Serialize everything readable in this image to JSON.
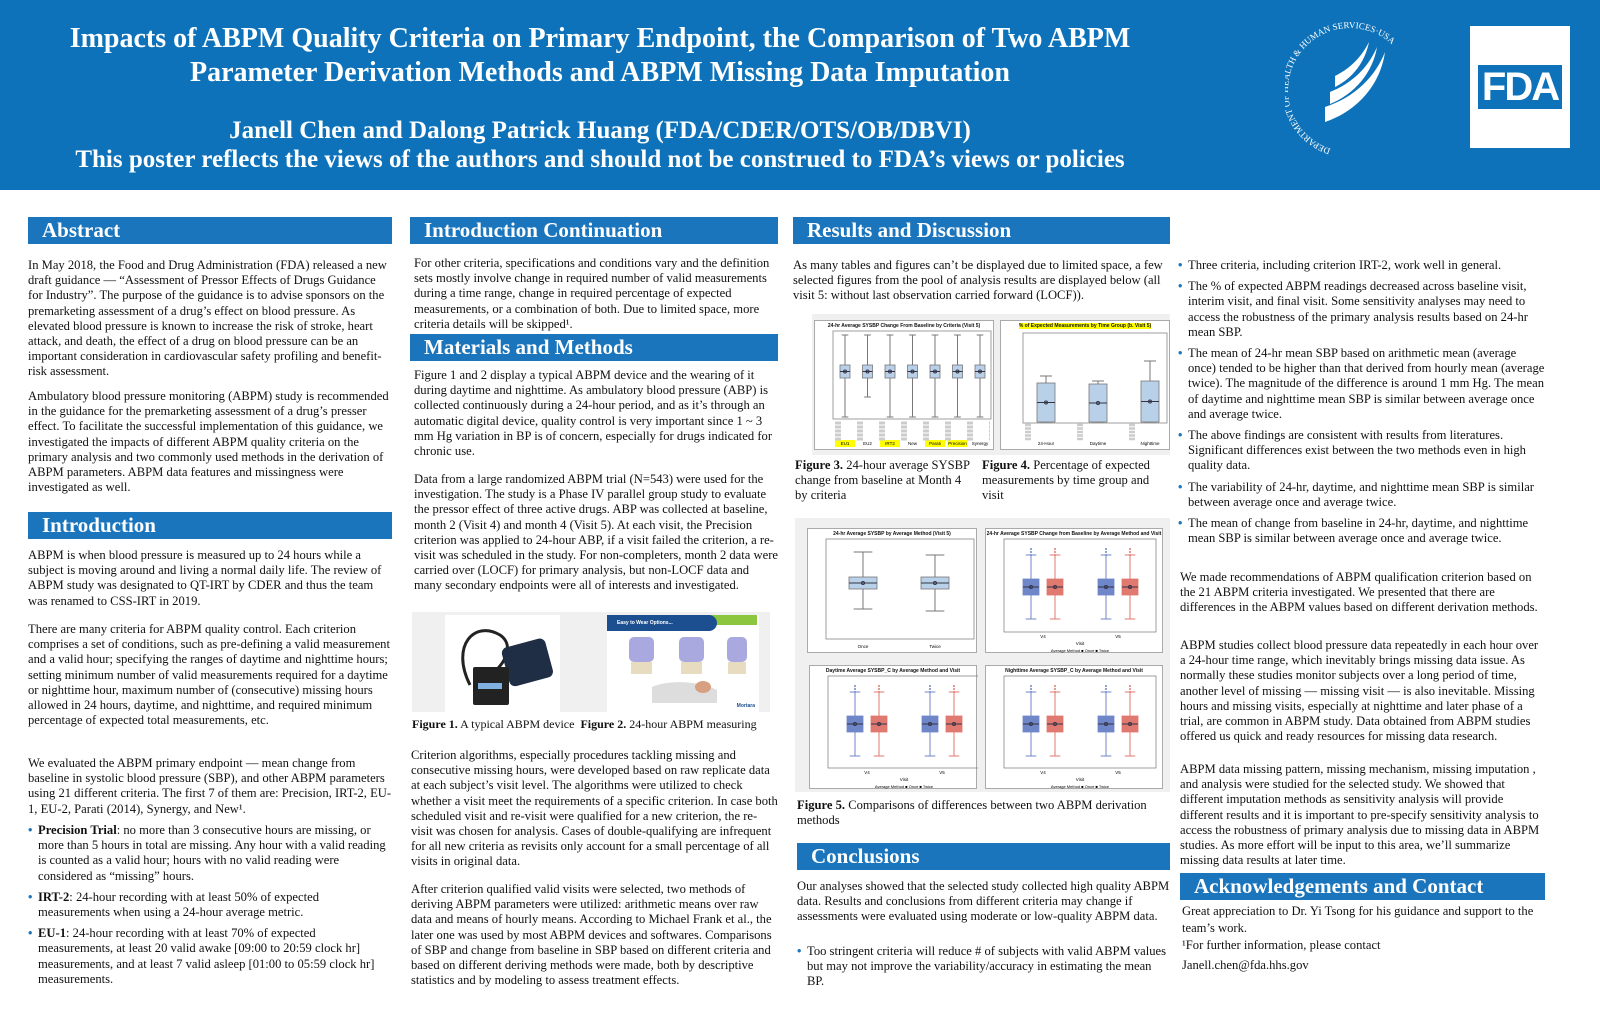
{
  "header": {
    "title_line1": "Impacts of ABPM Quality Criteria on Primary Endpoint, the Comparison of Two ABPM",
    "title_line2": "Parameter Derivation Methods and ABPM Missing Data Imputation",
    "authors": "Janell Chen and Dalong Patrick Huang (FDA/CDER/OTS/OB/DBVI)",
    "disclaimer": "This poster reflects the views of the authors and should not be construed to FDA’s views or policies",
    "hhs_logo_text": "DEPARTMENT OF HEALTH & HUMAN SERVICES·USA",
    "fda_logo": "FDA",
    "bg_color": "#0d72b9"
  },
  "abstract": {
    "heading": "Abstract",
    "p1": "In May 2018, the Food and Drug Administration (FDA) released a new draft guidance — “Assessment of Pressor Effects of Drugs Guidance for Industry”. The purpose of the guidance is to advise sponsors on the premarketing assessment of a drug’s effect on blood pressure. As elevated blood pressure is known to increase the risk of stroke, heart attack, and death, the effect of a drug on blood pressure can be an important consideration in cardiovascular safety profiling and benefit-risk assessment.",
    "p2": "Ambulatory blood pressure monitoring (ABPM) study is recommended in the guidance for the premarketing assessment of a drug’s presser effect. To facilitate the successful implementation of this guidance, we investigated the impacts of different ABPM quality criteria on the primary analysis and two commonly used methods in the derivation of ABPM parameters. ABPM data features and missingness were investigated as well."
  },
  "introduction": {
    "heading": "Introduction",
    "p1": "ABPM is when blood pressure is measured up to 24 hours while a subject is moving around and living a normal daily life. The review of ABPM study was designated to QT-IRT by CDER and thus the team was renamed to CSS-IRT in 2019.",
    "p2": "There are many criteria for ABPM quality control. Each criterion comprises a set of conditions, such as pre-defining a valid measurement and a valid hour; specifying the ranges of daytime and nighttime hours; setting minimum number of valid measurements required for a daytime or nighttime hour, maximum number of (consecutive) missing hours allowed in 24 hours, daytime, and nighttime, and required minimum percentage of expected total measurements, etc.",
    "p3": "We evaluated the ABPM primary endpoint — mean change from baseline in systolic blood pressure (SBP), and other ABPM parameters using 21 different criteria. The first 7 of them are: Precision, IRT-2, EU-1, EU-2, Parati (2014), Synergy, and New¹.",
    "bullets": [
      {
        "term": "Precision Trial",
        "text": ": no more than 3 consecutive hours are missing, or more than 5 hours in total are missing.  Any hour with a valid reading is counted as a valid hour; hours with no valid reading were considered as “missing” hours."
      },
      {
        "term": "IRT-2",
        "text": ": 24-hour recording with at least 50% of expected measurements when using a 24-hour average metric."
      },
      {
        "term": "EU-1",
        "text": ": 24-hour recording with at least 70% of expected measurements, at least 20 valid awake [09:00 to 20:59 clock hr] measurements, and at least 7 valid asleep [01:00 to 05:59 clock hr] measurements."
      }
    ]
  },
  "intro_continuation": {
    "heading": "Introduction Continuation",
    "p1": "For other criteria, specifications and conditions vary and the definition sets mostly involve change in required number of valid measurements during a time range, change in required percentage of expected measurements, or a combination of both. Due to limited space, more criteria details will be skipped¹."
  },
  "methods": {
    "heading": "Materials and Methods",
    "p1": "Figure 1 and 2 display a typical ABPM device and the wearing of it during daytime and nighttime. As ambulatory blood pressure (ABP) is collected continuously during a 24-hour period, and as it’s through an automatic digital device, quality control is very important since 1 ~ 3 mm Hg variation in BP is of concern, especially for drugs indicated for chronic use.",
    "p2": "Data from a large randomized ABPM trial (N=543) were used for the investigation. The study is a Phase IV parallel group study to evaluate the pressor effect of three active drugs. ABP was collected at baseline, month 2 (Visit 4) and month 4 (Visit 5). At each visit, the Precision criterion was applied to 24-hour ABP, if a visit failed the criterion, a re-visit was scheduled in the study. For non-completers, month 2 data were carried over (LOCF) for primary analysis, but non-LOCF data and many secondary endpoints were all of interests and investigated.",
    "fig_banner": "Easy to Wear Options...",
    "fig_brand": "Mortara",
    "fig1_label": "Figure 1.",
    "fig1_text": "A typical ABPM device",
    "fig2_label": "Figure 2.",
    "fig2_text": "24-hour ABPM measuring",
    "p3": "Criterion algorithms, especially procedures tackling missing and consecutive missing hours, were developed based on raw replicate data at each subject’s visit level. The algorithms were utilized to check whether a visit meet the requirements of a specific criterion. In case both scheduled visit and re-visit were qualified for a new criterion, the re-visit was chosen for analysis. Cases of double-qualifying are infrequent for all new criteria as revisits only account for  a small percentage of all visits in original data.",
    "p4": "After criterion qualified valid visits were selected, two  methods of deriving ABPM parameters were utilized: arithmetic means over raw data and means of hourly means. According to Michael Frank et al., the later one was used by most ABPM devices and softwares. Comparisons of SBP and change from baseline in SBP based on different criteria and based on different deriving methods were made, both by descriptive statistics and by modeling to assess treatment effects."
  },
  "results": {
    "heading": "Results and Discussion",
    "p1": "As many tables and figures can’t be displayed due to limited space, a few selected figures from the pool of analysis results are displayed below (all visit 5: without last observation carried forward (LOCF)).",
    "fig3_title": "24-hr Average SYSBP Change From Baseline by Criteria (Visit 5)",
    "fig3_categories": [
      "EU1",
      "EU2",
      "IRT2",
      "New",
      "Parati",
      "Precision",
      "Synergy"
    ],
    "fig4_title": "% of Expected Measurements by Time Group (b. Visit 5)",
    "fig4_categories": [
      "24-Hour",
      "Daytime",
      "Nighttime"
    ],
    "fig3_label": "Figure 3.",
    "fig3_caption": "24-hour average SYSBP change from baseline at Month 4 by criteria",
    "fig4_label": "Figure 4.",
    "fig4_caption": "Percentage of expected measurements by time group and visit",
    "fig5a_title": "24-hr Average SYSBP by Average Method (Visit 5)",
    "fig5a_categories": [
      "Once",
      "Twice"
    ],
    "fig5b_title": "24-hr Average SYSBP Change from Baseline by Average Method and Visit",
    "fig5c_title": "Daytime Average SYSBP_C by Average Method and Visit",
    "fig5d_title": "Nighttime Average SYSBP_C by Average Method and Visit",
    "fig5_visits": [
      "V4",
      "V5"
    ],
    "fig5_xlabel": "Visit",
    "fig5_legend": "Average Method  ■ Once  ■ Twice",
    "series_colors": {
      "once": "#6f86c9",
      "twice": "#e0796f",
      "single": "#b8d0e8"
    },
    "fig5_label": "Figure 5.",
    "fig5_caption": "Comparisons of differences between two ABPM derivation methods",
    "bullets": [
      "Three criteria, including criterion IRT-2, work well in general.",
      "The % of expected ABPM readings decreased across baseline visit, interim visit, and final visit. Some sensitivity analyses may need to access the robustness of the primary analysis results based on 24-hr mean SBP.",
      "The mean of 24-hr mean SBP based on arithmetic mean (average once) tended to be higher than that derived from hourly mean (average twice). The magnitude of the difference is around 1 mm Hg. The mean of daytime and nighttime mean SBP is similar between average once and average twice.",
      "The above findings are consistent with results from literatures. Significant differences exist between the two methods even in high quality data.",
      "The variability of 24-hr, daytime, and nighttime mean SBP is similar between average once and average twice.",
      "The mean of change from baseline in 24-hr, daytime, and nighttime mean SBP is similar between average once and average twice."
    ],
    "p2": "We made recommendations of ABPM qualification criterion based on the 21 ABPM criteria investigated. We presented that there are differences in the ABPM values based on different derivation methods.",
    "p3": "ABPM studies collect blood pressure data repeatedly in each hour over a 24-hour time range, which inevitably brings missing data issue. As normally these studies monitor subjects over a long period of time, another level of missing — missing visit — is also inevitable. Missing hours and missing visits, especially at nighttime and later phase of a trial, are common in ABPM study. Data obtained from ABPM studies offered us quick and ready resources for missing data research.",
    "p4": "ABPM data missing pattern, missing mechanism, missing imputation , and analysis were studied for the selected study. We showed that different imputation methods as sensitivity analysis will provide different results and it is important to pre-specify sensitivity analysis to access the robustness of primary analysis due to missing data in ABPM studies. As more effort will be input to this area, we’ll summarize missing data results at later time."
  },
  "conclusions": {
    "heading": "Conclusions",
    "p1": "Our analyses showed that the selected study collected high quality ABPM data. Results and conclusions from different criteria may change if assessments were evaluated using moderate or low-quality ABPM data.",
    "bullets": [
      "Too stringent criteria will reduce # of subjects with valid ABPM values but may not improve the variability/accuracy in estimating the mean BP."
    ]
  },
  "acknowledgements": {
    "heading": "Acknowledgements and Contact",
    "p1": "Great appreciation to Dr. Yi Tsong for his guidance and support to the team’s work.",
    "p2": "¹For further information, please contact",
    "email": "Janell.chen@fda.hhs.gov"
  }
}
